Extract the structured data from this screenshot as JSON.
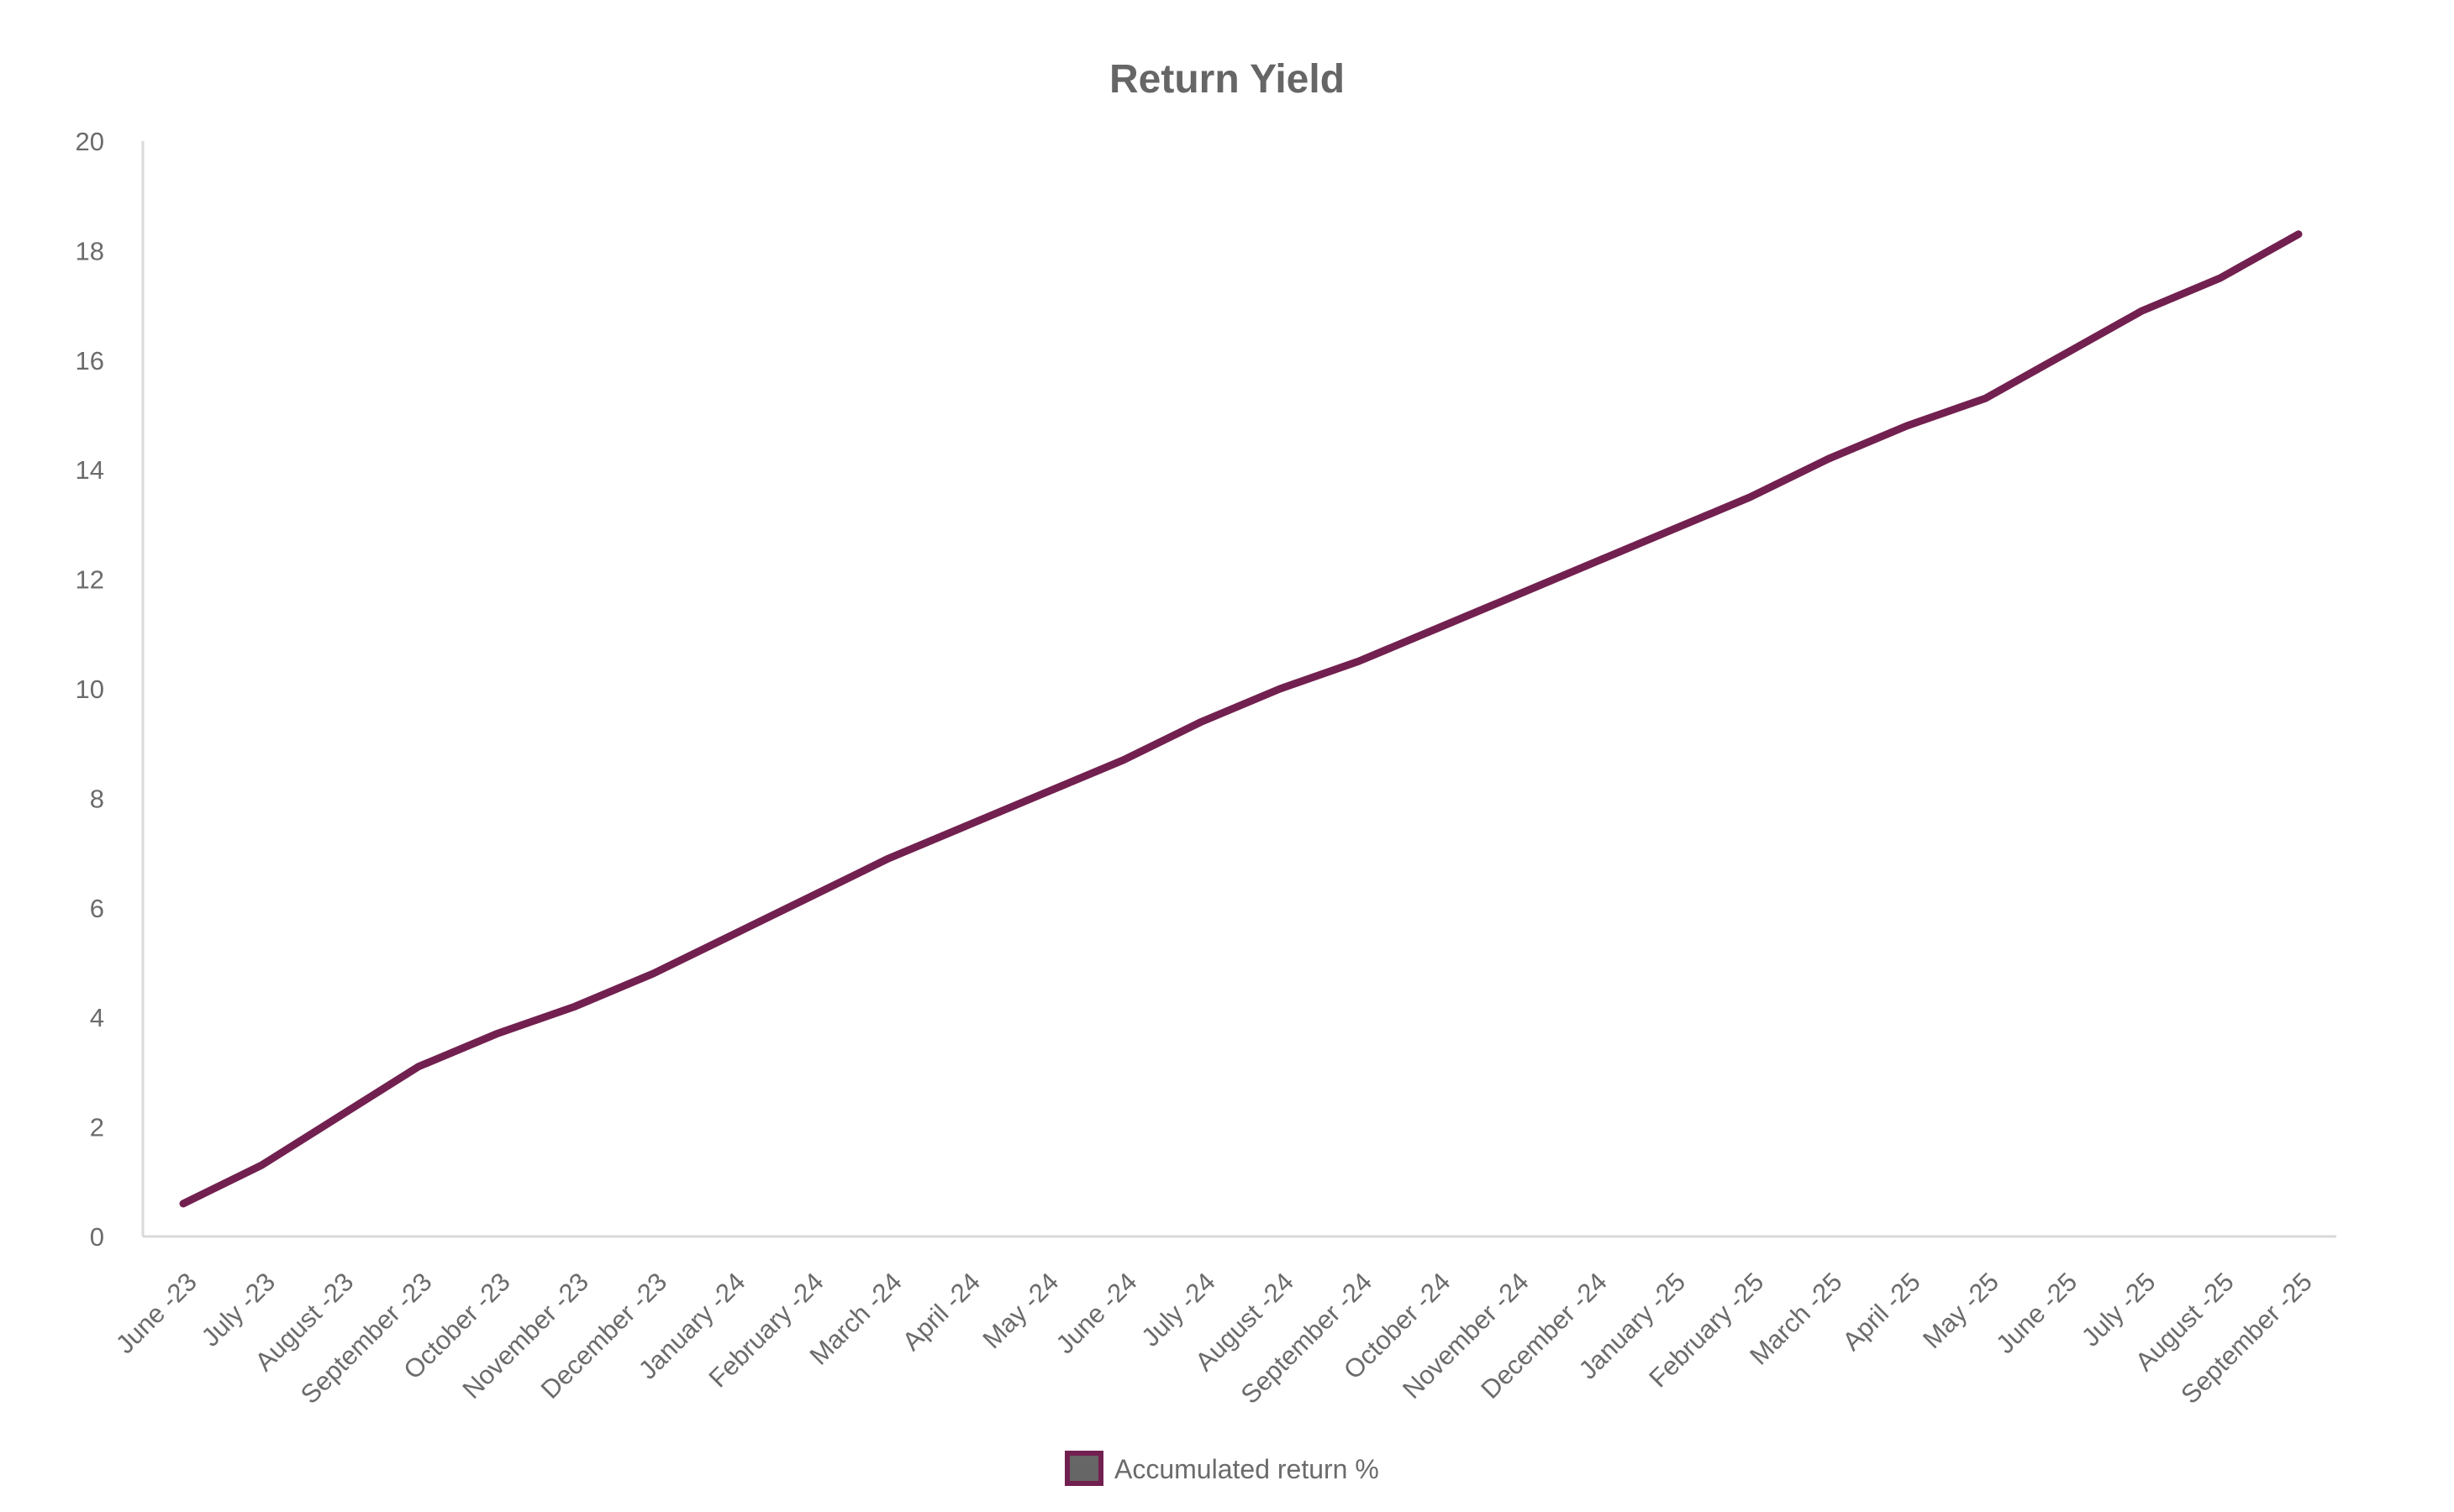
{
  "chart_data": {
    "type": "line",
    "title": "Return Yield",
    "xlabel": "",
    "ylabel": "",
    "ylim": [
      0,
      20
    ],
    "yticks": [
      0,
      2,
      4,
      6,
      8,
      10,
      12,
      14,
      16,
      18,
      20
    ],
    "categories": [
      "June -23",
      "July -23",
      "August -23",
      "September -23",
      "October -23",
      "November -23",
      "December -23",
      "January -24",
      "February -24",
      "March -24",
      "April -24",
      "May -24",
      "June -24",
      "July -24",
      "August -24",
      "September -24",
      "October -24",
      "November -24",
      "December -24",
      "January -25",
      "February -25",
      "March -25",
      "April -25",
      "May -25",
      "June -25",
      "July -25",
      "August -25",
      "September -25"
    ],
    "series": [
      {
        "name": "Accumulated return %",
        "color": "#722050",
        "values": [
          0.6,
          1.3,
          2.2,
          3.1,
          3.7,
          4.2,
          4.8,
          5.5,
          6.2,
          6.9,
          7.5,
          8.1,
          8.7,
          9.4,
          10.0,
          10.5,
          11.1,
          11.7,
          12.3,
          12.9,
          13.5,
          14.2,
          14.8,
          15.3,
          16.1,
          16.9,
          17.5,
          18.3
        ]
      }
    ],
    "grid": false,
    "legend_position": "bottom"
  }
}
